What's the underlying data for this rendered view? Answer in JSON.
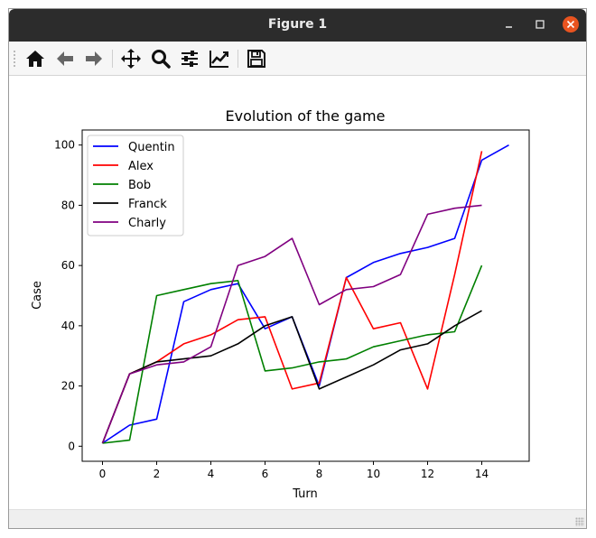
{
  "window": {
    "title": "Figure 1"
  },
  "toolbar": {
    "buttons": [
      {
        "name": "home",
        "icon": "home-icon"
      },
      {
        "name": "back",
        "icon": "arrow-left-icon"
      },
      {
        "name": "forward",
        "icon": "arrow-right-icon"
      },
      {
        "name": "pan",
        "icon": "move-icon"
      },
      {
        "name": "zoom",
        "icon": "magnifier-icon"
      },
      {
        "name": "configure-subplots",
        "icon": "sliders-icon"
      },
      {
        "name": "edit-axis",
        "icon": "line-chart-icon"
      },
      {
        "name": "save",
        "icon": "floppy-disk-icon"
      }
    ]
  },
  "colors": {
    "titlebar": "#2c2c2c",
    "close": "#e95420"
  },
  "chart_data": {
    "type": "line",
    "title": "Evolution of the game",
    "xlabel": "Turn",
    "ylabel": "Case",
    "xlim": [
      -0.75,
      15.75
    ],
    "ylim": [
      -5,
      105
    ],
    "xticks": [
      0,
      2,
      4,
      6,
      8,
      10,
      12,
      14
    ],
    "yticks": [
      0,
      20,
      40,
      60,
      80,
      100
    ],
    "grid": false,
    "legend_position": "upper left",
    "series": [
      {
        "name": "Quentin",
        "color": "#0000ff",
        "x": [
          0,
          1,
          2,
          3,
          4,
          5,
          6,
          7,
          8,
          9,
          10,
          11,
          12,
          13,
          14,
          15
        ],
        "y": [
          1,
          7,
          9,
          48,
          52,
          54,
          39,
          43,
          20,
          56,
          61,
          64,
          66,
          69,
          95,
          100
        ]
      },
      {
        "name": "Alex",
        "color": "#ff0000",
        "x": [
          0,
          1,
          2,
          3,
          4,
          5,
          6,
          7,
          8,
          9,
          10,
          11,
          12,
          13,
          14
        ],
        "y": [
          1,
          24,
          28,
          34,
          37,
          42,
          43,
          19,
          21,
          56,
          39,
          41,
          19,
          57,
          98
        ]
      },
      {
        "name": "Bob",
        "color": "#008000",
        "x": [
          0,
          1,
          2,
          3,
          4,
          5,
          6,
          7,
          8,
          9,
          10,
          11,
          12,
          13,
          14
        ],
        "y": [
          1,
          2,
          50,
          52,
          54,
          55,
          25,
          26,
          28,
          29,
          33,
          35,
          37,
          38,
          60
        ]
      },
      {
        "name": "Franck",
        "color": "#000000",
        "x": [
          0,
          1,
          2,
          3,
          4,
          5,
          6,
          7,
          8,
          9,
          10,
          11,
          12,
          13,
          14
        ],
        "y": [
          1,
          24,
          28,
          29,
          30,
          34,
          40,
          43,
          19,
          23,
          27,
          32,
          34,
          40,
          45
        ]
      },
      {
        "name": "Charly",
        "color": "#800080",
        "x": [
          0,
          1,
          2,
          3,
          4,
          5,
          6,
          7,
          8,
          9,
          10,
          11,
          12,
          13,
          14
        ],
        "y": [
          1,
          24,
          27,
          28,
          33,
          60,
          63,
          69,
          47,
          52,
          53,
          57,
          77,
          79,
          80
        ]
      }
    ]
  }
}
